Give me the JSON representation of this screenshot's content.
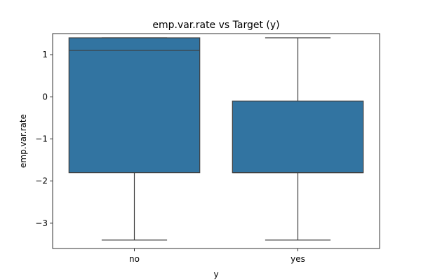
{
  "chart_data": {
    "type": "box",
    "title": "emp.var.rate vs Target (y)",
    "xlabel": "y",
    "ylabel": "emp.var.rate",
    "ylim": [
      -3.6,
      1.5
    ],
    "yticks": [
      1,
      0,
      -1,
      -2,
      -3
    ],
    "ytick_labels": [
      "1",
      "0",
      "−1",
      "−2",
      "−3"
    ],
    "grid": false,
    "color": "#3274a1",
    "line_color": "#3f3f3f",
    "categories": [
      "no",
      "yes"
    ],
    "boxes": [
      {
        "category": "no",
        "whisker_low": -3.4,
        "q1": -1.8,
        "median": 1.1,
        "q3": 1.4,
        "whisker_high": 1.4
      },
      {
        "category": "yes",
        "whisker_low": -3.4,
        "q1": -1.8,
        "median": -1.8,
        "q3": -0.1,
        "whisker_high": 1.4
      }
    ]
  }
}
